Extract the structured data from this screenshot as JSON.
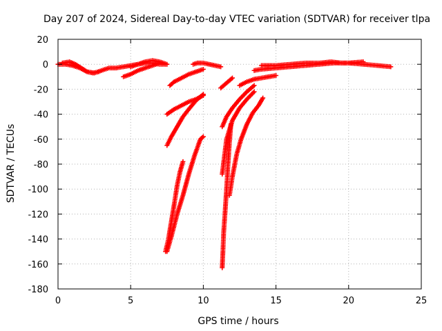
{
  "chart_data": {
    "type": "scatter",
    "title": "Day 207 of 2024, Sidereal Day-to-day VTEC variation (SDTVAR) for receiver tlpa",
    "xlabel": "GPS time / hours",
    "ylabel": "SDTVAR / TECUs",
    "xlim": [
      0,
      25
    ],
    "ylim": [
      -180,
      20
    ],
    "xticks": [
      0,
      5,
      10,
      15,
      20,
      25
    ],
    "yticks": [
      20,
      0,
      -20,
      -40,
      -60,
      -80,
      -100,
      -120,
      -140,
      -160,
      -180
    ],
    "grid": true,
    "marker": "+",
    "color": "#ff0000",
    "series": [
      {
        "name": "track-1",
        "x": [
          0,
          0.5,
          1.0,
          1.5,
          2.0,
          2.5,
          3.0,
          3.5,
          4.0,
          4.5,
          5.0,
          5.5,
          6.0,
          6.5,
          7.0,
          7.4
        ],
        "y": [
          0,
          0,
          -1,
          -3,
          -6,
          -7,
          -5,
          -3,
          -3,
          -2,
          -1,
          0,
          1,
          1,
          0,
          0
        ]
      },
      {
        "name": "track-2",
        "x": [
          0.3,
          0.8,
          1.2,
          1.6,
          2.0,
          2.4,
          2.8
        ],
        "y": [
          1,
          2,
          0,
          -3,
          -6,
          -7,
          -6
        ]
      },
      {
        "name": "track-3",
        "x": [
          4.5,
          5.0,
          5.5,
          6.0,
          6.5,
          7.0
        ],
        "y": [
          -10,
          -8,
          -5,
          -3,
          -1,
          1
        ]
      },
      {
        "name": "track-4",
        "x": [
          5.0,
          5.5,
          6.0,
          6.5,
          7.0,
          7.5
        ],
        "y": [
          -2,
          0,
          2,
          3,
          2,
          0
        ]
      },
      {
        "name": "track-5",
        "x": [
          7.7,
          8.0,
          8.5,
          9.0,
          9.5,
          10.0
        ],
        "y": [
          -17,
          -14,
          -11,
          -8,
          -6,
          -4
        ]
      },
      {
        "name": "track-6",
        "x": [
          9.3,
          9.6,
          10.0,
          10.4,
          10.8,
          11.2
        ],
        "y": [
          0,
          1,
          1,
          0,
          -1,
          -2
        ]
      },
      {
        "name": "track-7",
        "x": [
          7.5,
          7.8,
          8.2,
          8.6,
          9.0,
          9.5,
          10.0
        ],
        "y": [
          -65,
          -58,
          -50,
          -42,
          -36,
          -29,
          -24
        ]
      },
      {
        "name": "track-8",
        "x": [
          7.5,
          8.0,
          8.5,
          9.0,
          9.5,
          10.0
        ],
        "y": [
          -40,
          -36,
          -33,
          -30,
          -28,
          -25
        ]
      },
      {
        "name": "track-9",
        "x": [
          7.4,
          7.6,
          7.8,
          8.0,
          8.2,
          8.4,
          8.6
        ],
        "y": [
          -150,
          -140,
          -126,
          -112,
          -97,
          -86,
          -78
        ]
      },
      {
        "name": "track-10",
        "x": [
          7.5,
          7.8,
          8.2,
          8.6,
          9.0,
          9.4,
          9.8,
          10.0
        ],
        "y": [
          -150,
          -138,
          -120,
          -105,
          -88,
          -73,
          -60,
          -58
        ]
      },
      {
        "name": "track-11",
        "x": [
          11.3,
          11.35,
          11.4,
          11.5,
          11.6,
          11.7,
          11.8,
          11.9
        ],
        "y": [
          -163,
          -150,
          -135,
          -118,
          -100,
          -80,
          -62,
          -48
        ]
      },
      {
        "name": "track-12",
        "x": [
          11.8,
          12.0,
          12.3,
          12.6,
          13.0,
          13.4,
          13.8,
          14.1
        ],
        "y": [
          -105,
          -90,
          -72,
          -60,
          -48,
          -39,
          -33,
          -27
        ]
      },
      {
        "name": "track-13",
        "x": [
          11.3,
          11.6,
          12.0,
          12.5,
          13.0,
          13.5
        ],
        "y": [
          -88,
          -60,
          -45,
          -35,
          -28,
          -22
        ]
      },
      {
        "name": "track-14",
        "x": [
          11.3,
          11.6,
          12.0,
          12.5,
          13.0,
          13.5
        ],
        "y": [
          -50,
          -42,
          -35,
          -28,
          -22,
          -17
        ]
      },
      {
        "name": "track-15",
        "x": [
          11.2,
          11.6,
          12.0
        ],
        "y": [
          -19,
          -15,
          -11
        ]
      },
      {
        "name": "track-16",
        "x": [
          12.5,
          13.0,
          13.5,
          14.0,
          14.5,
          15.0
        ],
        "y": [
          -17,
          -14,
          -12,
          -11,
          -10,
          -9
        ]
      },
      {
        "name": "track-17",
        "x": [
          13.5,
          14.0,
          15.0,
          16.0,
          17.0,
          18.0,
          19.0,
          20.0,
          21.0,
          22.0,
          22.9
        ],
        "y": [
          -5,
          -4,
          -3,
          -2,
          -1,
          0,
          1,
          1,
          0,
          -1,
          -2
        ]
      },
      {
        "name": "track-18",
        "x": [
          14.0,
          15.0,
          16.0,
          17.0,
          18.0,
          18.8,
          19.5,
          20.0,
          21.0
        ],
        "y": [
          -1,
          -1,
          0,
          1,
          1,
          2,
          1,
          1,
          2
        ]
      }
    ]
  }
}
